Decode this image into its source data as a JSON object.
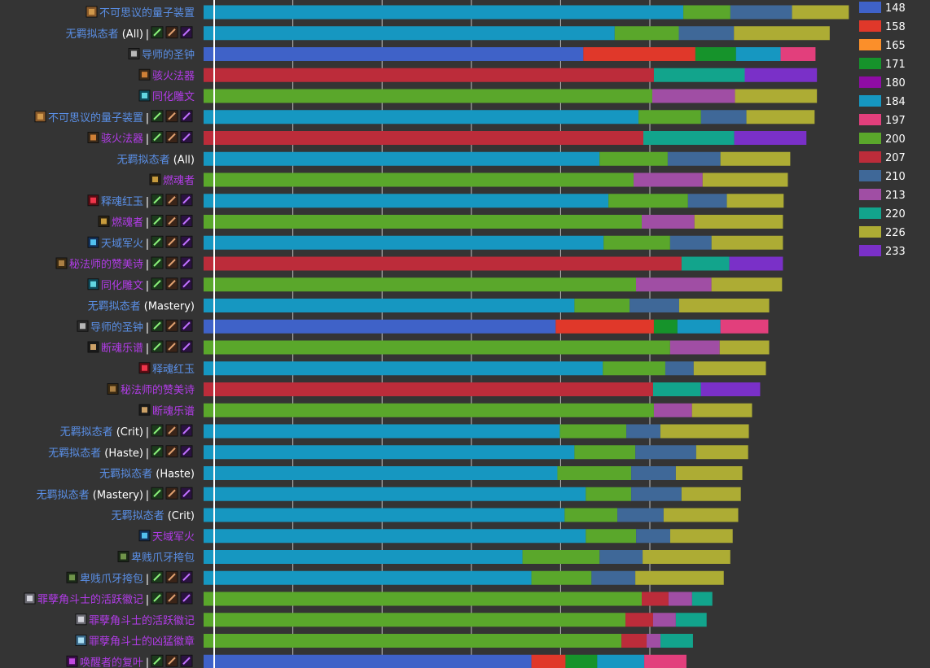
{
  "colors": {
    "background": "#343434",
    "gridline": "#bdbdbd",
    "baseline": "#ffffff",
    "link_blue": "#5a8fe6",
    "epic_purple": "#b23ce8",
    "white_text": "#ffffff",
    "separator": "#ffffff"
  },
  "chart_data": {
    "type": "bar",
    "stacked": true,
    "orientation": "horizontal",
    "grid": true,
    "legend_position": "right",
    "xlim": [
      0,
      5000
    ],
    "ticks": [
      0,
      1000,
      2000,
      3000,
      4000,
      5000
    ],
    "legend": [
      {
        "label": "148",
        "color": "#3f62c8"
      },
      {
        "label": "158",
        "color": "#e0382a"
      },
      {
        "label": "165",
        "color": "#fb8f2a"
      },
      {
        "label": "171",
        "color": "#16932b"
      },
      {
        "label": "180",
        "color": "#8e0ca4"
      },
      {
        "label": "184",
        "color": "#1697c1"
      },
      {
        "label": "197",
        "color": "#e23f7c"
      },
      {
        "label": "200",
        "color": "#5aa72b"
      },
      {
        "label": "207",
        "color": "#bc2c3a"
      },
      {
        "label": "210",
        "color": "#3f6898"
      },
      {
        "label": "213",
        "color": "#a04ea4"
      },
      {
        "label": "220",
        "color": "#12a48c"
      },
      {
        "label": "226",
        "color": "#adac34"
      },
      {
        "label": "233",
        "color": "#7a30c8"
      }
    ],
    "rows": [
      {
        "name": "不可思议的量子装置",
        "qual": "",
        "color": "#5a8fe6",
        "icon": "quantum-device-icon",
        "talents": false,
        "segments": [
          {
            "ilvl": "184",
            "value": 5375
          },
          {
            "ilvl": "200",
            "value": 527
          },
          {
            "ilvl": "210",
            "value": 691
          },
          {
            "ilvl": "226",
            "value": 636
          }
        ]
      },
      {
        "name": "无羁拟态者",
        "qual": " (All)",
        "color": "#5a8fe6",
        "icon": "",
        "talents": true,
        "segments": [
          {
            "ilvl": "184",
            "value": 4606
          },
          {
            "ilvl": "200",
            "value": 718
          },
          {
            "ilvl": "210",
            "value": 618
          },
          {
            "ilvl": "226",
            "value": 1073
          }
        ]
      },
      {
        "name": "导师的圣钟",
        "qual": "",
        "color": "#5a8fe6",
        "icon": "bell-icon",
        "talents": false,
        "segments": [
          {
            "ilvl": "148",
            "value": 4255
          },
          {
            "ilvl": "158",
            "value": 1255
          },
          {
            "ilvl": "171",
            "value": 455
          },
          {
            "ilvl": "184",
            "value": 500
          },
          {
            "ilvl": "197",
            "value": 391
          }
        ]
      },
      {
        "name": "骇火法器",
        "qual": "",
        "color": "#b23ce8",
        "icon": "dreadfire-vessel-icon",
        "talents": false,
        "segments": [
          {
            "ilvl": "207",
            "value": 5045
          },
          {
            "ilvl": "220",
            "value": 1018
          },
          {
            "ilvl": "233",
            "value": 809
          }
        ]
      },
      {
        "name": "同化雕文",
        "qual": "",
        "color": "#b23ce8",
        "icon": "glyph-icon",
        "talents": false,
        "segments": [
          {
            "ilvl": "200",
            "value": 5027
          },
          {
            "ilvl": "213",
            "value": 927
          },
          {
            "ilvl": "226",
            "value": 918
          }
        ]
      },
      {
        "name": "不可思议的量子装置",
        "qual": "",
        "color": "#5a8fe6",
        "icon": "quantum-device-icon",
        "talents": true,
        "segments": [
          {
            "ilvl": "184",
            "value": 4873
          },
          {
            "ilvl": "200",
            "value": 700
          },
          {
            "ilvl": "210",
            "value": 509
          },
          {
            "ilvl": "226",
            "value": 764
          }
        ]
      },
      {
        "name": "骇火法器",
        "qual": "",
        "color": "#b23ce8",
        "icon": "dreadfire-vessel-icon",
        "talents": true,
        "segments": [
          {
            "ilvl": "207",
            "value": 4927
          },
          {
            "ilvl": "220",
            "value": 1018
          },
          {
            "ilvl": "233",
            "value": 809
          }
        ]
      },
      {
        "name": "无羁拟态者",
        "qual": " (All)",
        "color": "#5a8fe6",
        "icon": "",
        "talents": false,
        "segments": [
          {
            "ilvl": "184",
            "value": 4436
          },
          {
            "ilvl": "200",
            "value": 764
          },
          {
            "ilvl": "210",
            "value": 591
          },
          {
            "ilvl": "226",
            "value": 782
          }
        ]
      },
      {
        "name": "燃魂者",
        "qual": "",
        "color": "#b23ce8",
        "icon": "soulbinder-icon",
        "talents": false,
        "segments": [
          {
            "ilvl": "200",
            "value": 4818
          },
          {
            "ilvl": "213",
            "value": 773
          },
          {
            "ilvl": "226",
            "value": 955
          }
        ]
      },
      {
        "name": "释魂红玉",
        "qual": "",
        "color": "#5a8fe6",
        "icon": "ruby-icon",
        "talents": true,
        "segments": [
          {
            "ilvl": "184",
            "value": 4536
          },
          {
            "ilvl": "200",
            "value": 891
          },
          {
            "ilvl": "210",
            "value": 436
          },
          {
            "ilvl": "226",
            "value": 636
          }
        ]
      },
      {
        "name": "燃魂者",
        "qual": "",
        "color": "#b23ce8",
        "icon": "soulbinder-icon",
        "talents": true,
        "segments": [
          {
            "ilvl": "200",
            "value": 4909
          },
          {
            "ilvl": "213",
            "value": 591
          },
          {
            "ilvl": "226",
            "value": 991
          }
        ]
      },
      {
        "name": "天域军火",
        "qual": "",
        "color": "#5a8fe6",
        "icon": "munitions-icon",
        "talents": true,
        "segments": [
          {
            "ilvl": "184",
            "value": 4482
          },
          {
            "ilvl": "200",
            "value": 745
          },
          {
            "ilvl": "210",
            "value": 464
          },
          {
            "ilvl": "226",
            "value": 800
          }
        ]
      },
      {
        "name": "秘法师的赞美诗",
        "qual": "",
        "color": "#b23ce8",
        "icon": "hymnal-icon",
        "talents": true,
        "segments": [
          {
            "ilvl": "207",
            "value": 5355
          },
          {
            "ilvl": "220",
            "value": 536
          },
          {
            "ilvl": "233",
            "value": 600
          }
        ]
      },
      {
        "name": "同化雕文",
        "qual": "",
        "color": "#b23ce8",
        "icon": "glyph-icon",
        "talents": true,
        "segments": [
          {
            "ilvl": "200",
            "value": 4845
          },
          {
            "ilvl": "213",
            "value": 845
          },
          {
            "ilvl": "226",
            "value": 791
          }
        ]
      },
      {
        "name": "无羁拟态者",
        "qual": " (Mastery)",
        "color": "#5a8fe6",
        "icon": "",
        "talents": false,
        "segments": [
          {
            "ilvl": "184",
            "value": 4155
          },
          {
            "ilvl": "200",
            "value": 618
          },
          {
            "ilvl": "210",
            "value": 555
          },
          {
            "ilvl": "226",
            "value": 1009
          }
        ]
      },
      {
        "name": "导师的圣钟",
        "qual": "",
        "color": "#5a8fe6",
        "icon": "bell-icon",
        "talents": true,
        "segments": [
          {
            "ilvl": "148",
            "value": 3945
          },
          {
            "ilvl": "158",
            "value": 1100
          },
          {
            "ilvl": "171",
            "value": 264
          },
          {
            "ilvl": "184",
            "value": 482
          },
          {
            "ilvl": "197",
            "value": 536
          }
        ]
      },
      {
        "name": "断魂乐谱",
        "qual": "",
        "color": "#b23ce8",
        "icon": "score-icon",
        "talents": true,
        "segments": [
          {
            "ilvl": "200",
            "value": 5227
          },
          {
            "ilvl": "213",
            "value": 555
          },
          {
            "ilvl": "226",
            "value": 555
          }
        ]
      },
      {
        "name": "释魂红玉",
        "qual": "",
        "color": "#5a8fe6",
        "icon": "ruby-icon",
        "talents": false,
        "segments": [
          {
            "ilvl": "184",
            "value": 4473
          },
          {
            "ilvl": "200",
            "value": 700
          },
          {
            "ilvl": "210",
            "value": 318
          },
          {
            "ilvl": "226",
            "value": 809
          }
        ]
      },
      {
        "name": "秘法师的赞美诗",
        "qual": "",
        "color": "#b23ce8",
        "icon": "hymnal-icon",
        "talents": false,
        "segments": [
          {
            "ilvl": "207",
            "value": 5036
          },
          {
            "ilvl": "220",
            "value": 536
          },
          {
            "ilvl": "233",
            "value": 664
          }
        ]
      },
      {
        "name": "断魂乐谱",
        "qual": "",
        "color": "#b23ce8",
        "icon": "score-icon",
        "talents": false,
        "segments": [
          {
            "ilvl": "200",
            "value": 5045
          },
          {
            "ilvl": "213",
            "value": 427
          },
          {
            "ilvl": "226",
            "value": 673
          }
        ]
      },
      {
        "name": "无羁拟态者",
        "qual": " (Crit)",
        "color": "#5a8fe6",
        "icon": "",
        "talents": true,
        "segments": [
          {
            "ilvl": "184",
            "value": 3991
          },
          {
            "ilvl": "200",
            "value": 745
          },
          {
            "ilvl": "210",
            "value": 382
          },
          {
            "ilvl": "226",
            "value": 991
          }
        ]
      },
      {
        "name": "无羁拟态者",
        "qual": " (Haste)",
        "color": "#5a8fe6",
        "icon": "",
        "talents": true,
        "segments": [
          {
            "ilvl": "184",
            "value": 4155
          },
          {
            "ilvl": "200",
            "value": 682
          },
          {
            "ilvl": "210",
            "value": 682
          },
          {
            "ilvl": "226",
            "value": 582
          }
        ]
      },
      {
        "name": "无羁拟态者",
        "qual": " (Haste)",
        "color": "#5a8fe6",
        "icon": "",
        "talents": false,
        "segments": [
          {
            "ilvl": "184",
            "value": 3964
          },
          {
            "ilvl": "200",
            "value": 827
          },
          {
            "ilvl": "210",
            "value": 500
          },
          {
            "ilvl": "226",
            "value": 745
          }
        ]
      },
      {
        "name": "无羁拟态者",
        "qual": " (Mastery)",
        "color": "#5a8fe6",
        "icon": "",
        "talents": true,
        "segments": [
          {
            "ilvl": "184",
            "value": 4282
          },
          {
            "ilvl": "200",
            "value": 509
          },
          {
            "ilvl": "210",
            "value": 564
          },
          {
            "ilvl": "226",
            "value": 664
          }
        ]
      },
      {
        "name": "无羁拟态者",
        "qual": " (Crit)",
        "color": "#5a8fe6",
        "icon": "",
        "talents": false,
        "segments": [
          {
            "ilvl": "184",
            "value": 4045
          },
          {
            "ilvl": "200",
            "value": 591
          },
          {
            "ilvl": "210",
            "value": 518
          },
          {
            "ilvl": "226",
            "value": 836
          }
        ]
      },
      {
        "name": "天域军火",
        "qual": "",
        "color": "#b23ce8",
        "icon": "munitions-icon",
        "talents": false,
        "segments": [
          {
            "ilvl": "184",
            "value": 4282
          },
          {
            "ilvl": "200",
            "value": 564
          },
          {
            "ilvl": "210",
            "value": 382
          },
          {
            "ilvl": "226",
            "value": 700
          }
        ]
      },
      {
        "name": "卑贱爪牙挎包",
        "qual": "",
        "color": "#5a8fe6",
        "icon": "satchel-icon",
        "talents": false,
        "segments": [
          {
            "ilvl": "184",
            "value": 3573
          },
          {
            "ilvl": "200",
            "value": 864
          },
          {
            "ilvl": "210",
            "value": 482
          },
          {
            "ilvl": "226",
            "value": 982
          }
        ]
      },
      {
        "name": "卑贱爪牙挎包",
        "qual": "",
        "color": "#5a8fe6",
        "icon": "satchel-icon",
        "talents": true,
        "segments": [
          {
            "ilvl": "184",
            "value": 3673
          },
          {
            "ilvl": "200",
            "value": 673
          },
          {
            "ilvl": "210",
            "value": 491
          },
          {
            "ilvl": "226",
            "value": 991
          }
        ]
      },
      {
        "name": "罪孽角斗士的活跃徽记",
        "qual": "",
        "color": "#b23ce8",
        "icon": "insignia-icon",
        "talents": true,
        "segments": [
          {
            "ilvl": "200",
            "value": 4909
          },
          {
            "ilvl": "207",
            "value": 300
          },
          {
            "ilvl": "213",
            "value": 264
          },
          {
            "ilvl": "220",
            "value": 227
          }
        ]
      },
      {
        "name": "罪孽角斗士的活跃徽记",
        "qual": "",
        "color": "#b23ce8",
        "icon": "insignia-icon",
        "talents": false,
        "segments": [
          {
            "ilvl": "200",
            "value": 4727
          },
          {
            "ilvl": "207",
            "value": 309
          },
          {
            "ilvl": "213",
            "value": 255
          },
          {
            "ilvl": "220",
            "value": 345
          }
        ]
      },
      {
        "name": "罪孽角斗士的凶猛徽章",
        "qual": "",
        "color": "#b23ce8",
        "icon": "badge-icon",
        "talents": false,
        "segments": [
          {
            "ilvl": "200",
            "value": 4682
          },
          {
            "ilvl": "207",
            "value": 282
          },
          {
            "ilvl": "213",
            "value": 155
          },
          {
            "ilvl": "220",
            "value": 364
          }
        ]
      },
      {
        "name": "唤醒者的复叶",
        "qual": "",
        "color": "#b23ce8",
        "icon": "frond-icon",
        "talents": true,
        "segments": [
          {
            "ilvl": "148",
            "value": 3673
          },
          {
            "ilvl": "158",
            "value": 382
          },
          {
            "ilvl": "171",
            "value": 355
          },
          {
            "ilvl": "184",
            "value": 527
          },
          {
            "ilvl": "197",
            "value": 473
          }
        ]
      }
    ]
  }
}
